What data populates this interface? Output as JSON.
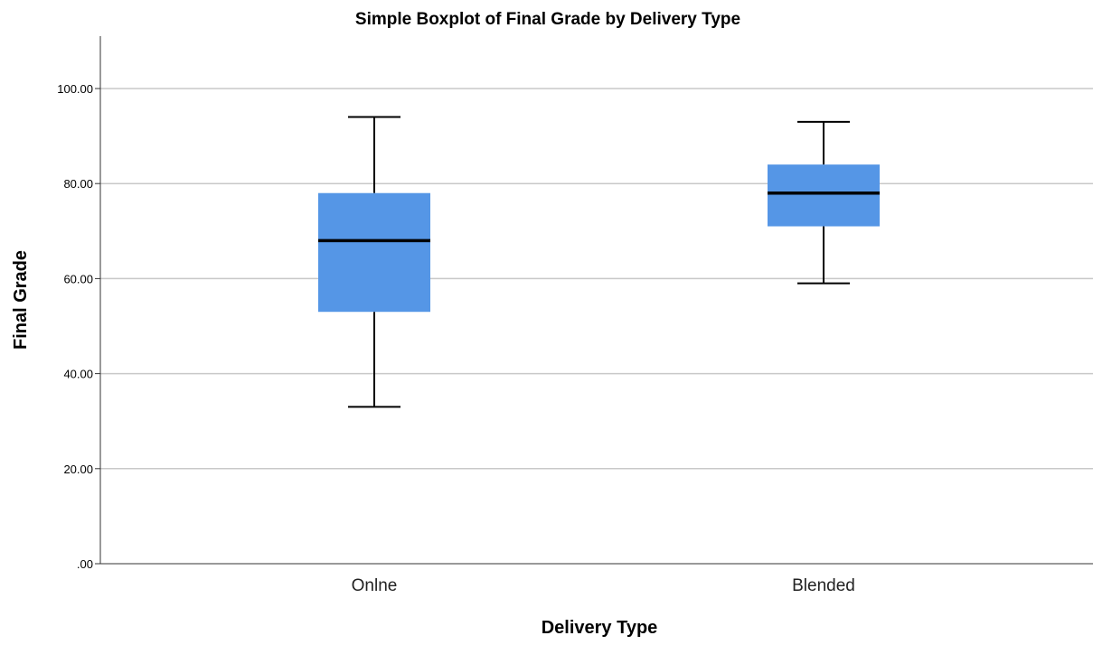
{
  "chart_data": {
    "type": "boxplot",
    "title": "Simple Boxplot of Final Grade by Delivery Type",
    "xlabel": "Delivery Type",
    "ylabel": "Final Grade",
    "ylim": [
      0,
      110
    ],
    "yticks": [
      0,
      20,
      40,
      60,
      80,
      100
    ],
    "ytick_labels": [
      ".00",
      "20.00",
      "40.00",
      "60.00",
      "80.00",
      "100.00"
    ],
    "grid": true,
    "box_color": "#5596e6",
    "categories": [
      "Onlne",
      "Blended"
    ],
    "boxes": [
      {
        "category": "Onlne",
        "whisker_low": 33,
        "q1": 53,
        "median": 68,
        "q3": 78,
        "whisker_high": 94
      },
      {
        "category": "Blended",
        "whisker_low": 59,
        "q1": 71,
        "median": 78,
        "q3": 84,
        "whisker_high": 93
      }
    ]
  }
}
